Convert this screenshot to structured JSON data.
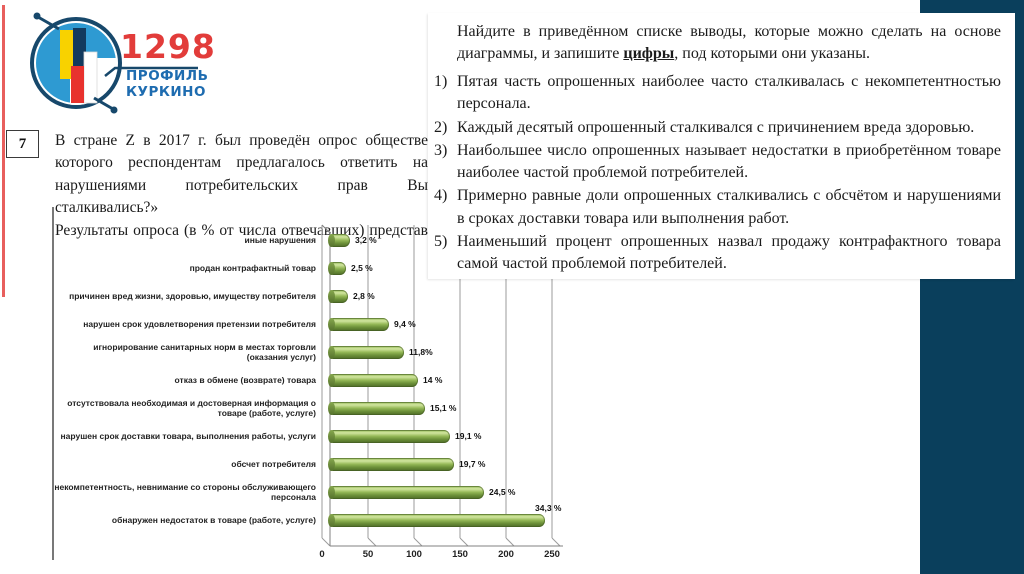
{
  "logo": {
    "number": "1298",
    "line1": "ПРОФИЛЬ",
    "line2": "КУРКИНО"
  },
  "question": {
    "number": "7",
    "lines": [
      "В стране Z в 2017 г. был проведён опрос обществе",
      "которого респондентам предлагалось ответить на",
      "нарушениями потребительских прав Вы сталкивались?»",
      "Результаты опроса (в % от числа отвечавших) представ"
    ]
  },
  "panel": {
    "header_prefix": "Найдите в приведённом списке выводы, которые можно сделать на основе диаграммы, и запишите ",
    "header_emphasis": "цифры",
    "header_suffix": ", под которыми они указаны.",
    "items": [
      {
        "num": "1)",
        "text": "Пятая часть опрошенных наиболее часто сталкивалась с некомпетентностью персонала."
      },
      {
        "num": "2)",
        "text": "Каждый десятый опрошенный сталкивался с причинением вреда здоровью."
      },
      {
        "num": "3)",
        "text": "Наибольшее число опрошенных называет недостатки в приобретённом товаре наиболее частой проблемой потребителей."
      },
      {
        "num": "4)",
        "text": "Примерно равные доли опрошенных сталкивались с обсчётом и нарушениями в сроках доставки товара или выполнения работ."
      },
      {
        "num": "5)",
        "text": "Наименьший процент опрошенных назвал продажу контрафактного товара самой частой проблемой потребителей."
      }
    ]
  },
  "chart_data": {
    "type": "bar",
    "orientation": "horizontal",
    "style": "3d-cylinder",
    "grid": true,
    "categories": [
      "иные нарушения",
      "продан контрафактный товар",
      "причинен вред жизни, здоровью, имуществу потребителя",
      "нарушен срок удовлетворения претензии потребителя",
      "игнорирование санитарных норм в местах торговли (оказания услуг)",
      "отказ в обмене (возврате) товара",
      "отсутствовала необходимая и достоверная информация о товаре (работе, услуге)",
      "нарушен срок доставки товара, выполнения работы, услуги",
      "обсчет потребителя",
      "некомпетентность, невнимание со стороны обслуживающего персонала",
      "обнаружен недостаток в товаре (работе, услуге)"
    ],
    "values": [
      3.2,
      2.5,
      2.8,
      9.4,
      11.8,
      14,
      15.1,
      19.1,
      19.7,
      24.5,
      34.3
    ],
    "value_labels": [
      "3,2 %",
      "2,5 %",
      "2,8 %",
      "9,4 %",
      "11,8%",
      "14 %",
      "15,1 %",
      "19,1 %",
      "19,7 %",
      "24,5 %",
      "34,3 %"
    ],
    "x_ticks": [
      "0",
      "50",
      "100",
      "150",
      "200",
      "250"
    ],
    "xlim": [
      0,
      262
    ],
    "bar_color": "#8fae4e",
    "title": "",
    "xlabel": "",
    "ylabel": ""
  },
  "colors": {
    "navy": "#0a3f5c",
    "accent_red": "#e85f5d",
    "logo_red": "#e23c3a",
    "logo_blue": "#1e6cb0",
    "globe_fill": "#2e9ad2",
    "bar_green": "#8fae4e"
  }
}
